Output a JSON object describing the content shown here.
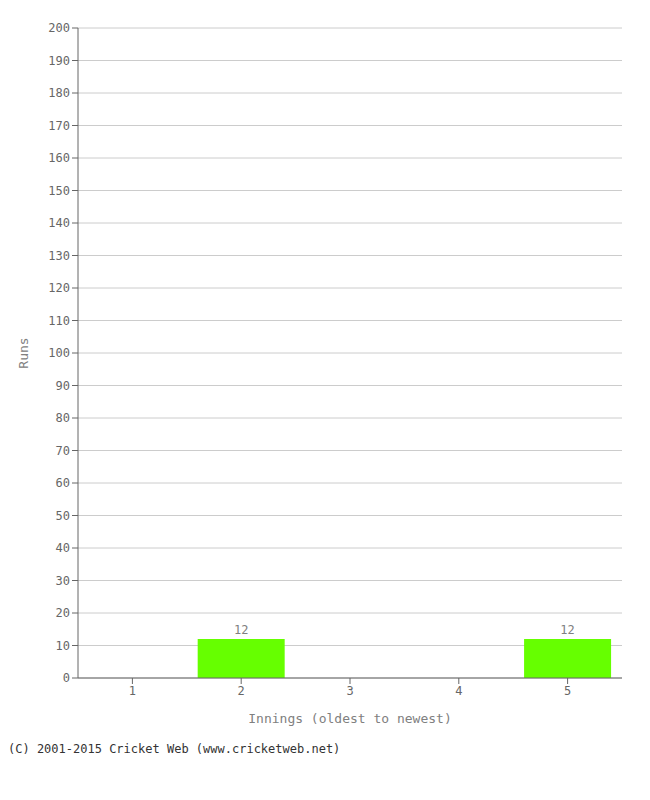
{
  "chart_data": {
    "type": "bar",
    "categories": [
      "1",
      "2",
      "3",
      "4",
      "5"
    ],
    "values": [
      0,
      12,
      0,
      0,
      12
    ],
    "color": "#66ff00",
    "xlabel": "Innings (oldest to newest)",
    "ylabel": "Runs",
    "ylim": [
      0,
      200
    ],
    "yticks": [
      0,
      10,
      20,
      30,
      40,
      50,
      60,
      70,
      80,
      90,
      100,
      110,
      120,
      130,
      140,
      150,
      160,
      170,
      180,
      190,
      200
    ],
    "grid": true,
    "data_labels": true,
    "annotations": [
      "(C) 2001-2015 Cricket Web (www.cricketweb.net)"
    ]
  }
}
